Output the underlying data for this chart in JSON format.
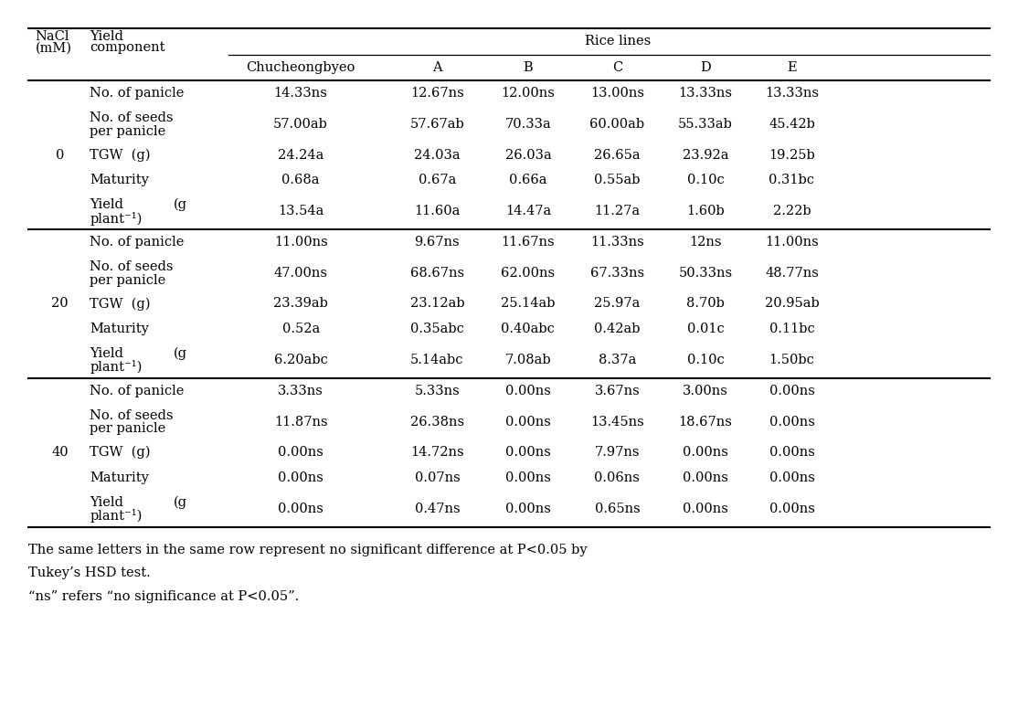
{
  "nacl_groups": [
    {
      "nacl": "0",
      "rows": [
        {
          "component_lines": [
            "No. of panicle"
          ],
          "values": [
            "14.33ns",
            "12.67ns",
            "12.00ns",
            "13.00ns",
            "13.33ns",
            "13.33ns"
          ]
        },
        {
          "component_lines": [
            "No. of seeds",
            "per panicle"
          ],
          "values": [
            "57.00ab",
            "57.67ab",
            "70.33a",
            "60.00ab",
            "55.33ab",
            "45.42b"
          ]
        },
        {
          "component_lines": [
            "TGW  (g)"
          ],
          "values": [
            "24.24a",
            "24.03a",
            "26.03a",
            "26.65a",
            "23.92a",
            "19.25b"
          ]
        },
        {
          "component_lines": [
            "Maturity"
          ],
          "values": [
            "0.68a",
            "0.67a",
            "0.66a",
            "0.55ab",
            "0.10c",
            "0.31bc"
          ]
        },
        {
          "component_lines": [
            "Yield",
            "plant⁻¹)"
          ],
          "yield_g": true,
          "values": [
            "13.54a",
            "11.60a",
            "14.47a",
            "11.27a",
            "1.60b",
            "2.22b"
          ]
        }
      ]
    },
    {
      "nacl": "20",
      "rows": [
        {
          "component_lines": [
            "No. of panicle"
          ],
          "values": [
            "11.00ns",
            "9.67ns",
            "11.67ns",
            "11.33ns",
            "12ns",
            "11.00ns"
          ]
        },
        {
          "component_lines": [
            "No. of seeds",
            "per panicle"
          ],
          "values": [
            "47.00ns",
            "68.67ns",
            "62.00ns",
            "67.33ns",
            "50.33ns",
            "48.77ns"
          ]
        },
        {
          "component_lines": [
            "TGW  (g)"
          ],
          "values": [
            "23.39ab",
            "23.12ab",
            "25.14ab",
            "25.97a",
            "8.70b",
            "20.95ab"
          ]
        },
        {
          "component_lines": [
            "Maturity"
          ],
          "values": [
            "0.52a",
            "0.35abc",
            "0.40abc",
            "0.42ab",
            "0.01c",
            "0.11bc"
          ]
        },
        {
          "component_lines": [
            "Yield",
            "plant⁻¹)"
          ],
          "yield_g": true,
          "values": [
            "6.20abc",
            "5.14abc",
            "7.08ab",
            "8.37a",
            "0.10c",
            "1.50bc"
          ]
        }
      ]
    },
    {
      "nacl": "40",
      "rows": [
        {
          "component_lines": [
            "No. of panicle"
          ],
          "values": [
            "3.33ns",
            "5.33ns",
            "0.00ns",
            "3.67ns",
            "3.00ns",
            "0.00ns"
          ]
        },
        {
          "component_lines": [
            "No. of seeds",
            "per panicle"
          ],
          "values": [
            "11.87ns",
            "26.38ns",
            "0.00ns",
            "13.45ns",
            "18.67ns",
            "0.00ns"
          ]
        },
        {
          "component_lines": [
            "TGW  (g)"
          ],
          "values": [
            "0.00ns",
            "14.72ns",
            "0.00ns",
            "7.97ns",
            "0.00ns",
            "0.00ns"
          ]
        },
        {
          "component_lines": [
            "Maturity"
          ],
          "values": [
            "0.00ns",
            "0.07ns",
            "0.00ns",
            "0.06ns",
            "0.00ns",
            "0.00ns"
          ]
        },
        {
          "component_lines": [
            "Yield",
            "plant⁻¹)"
          ],
          "yield_g": true,
          "values": [
            "0.00ns",
            "0.47ns",
            "0.00ns",
            "0.65ns",
            "0.00ns",
            "0.00ns"
          ]
        }
      ]
    }
  ],
  "col_names": [
    "Chucheongbyeo",
    "A",
    "B",
    "C",
    "D",
    "E"
  ],
  "footnote1": "The same letters in the same row represent no significant difference at P<0.05 by",
  "footnote2": "Tukey’s HSD test.",
  "footnote3": "“ns” refers “no significance at P<0.05”.",
  "bg_color": "#ffffff",
  "text_color": "#000000",
  "font_size": 10.5,
  "footnote_font_size": 10.5
}
